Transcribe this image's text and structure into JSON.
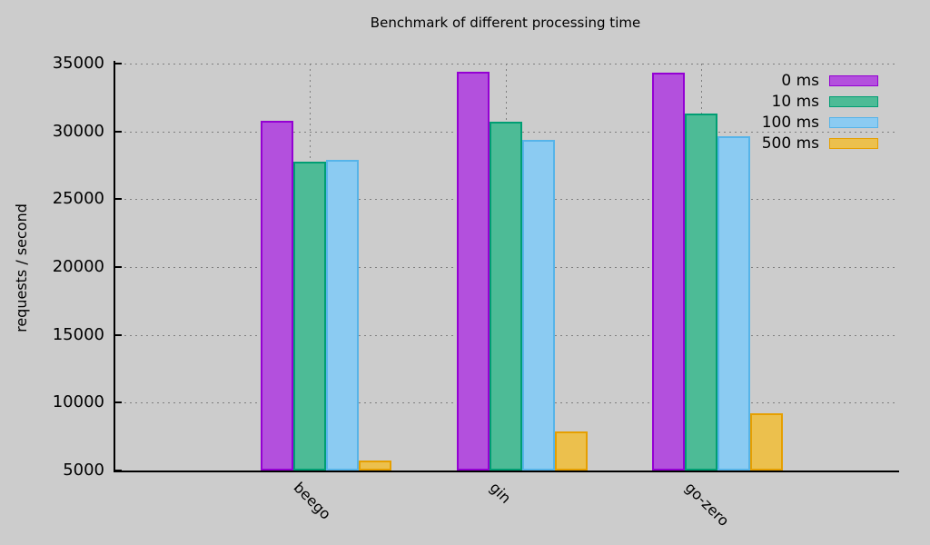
{
  "chart_data": {
    "type": "bar",
    "title": "Benchmark of different processing time",
    "ylabel": "requests / second",
    "xlabel": "",
    "categories": [
      "beego",
      "gin",
      "go-zero"
    ],
    "series": [
      {
        "name": "0 ms",
        "fill": "#b350dd",
        "border": "#9400d3",
        "values": [
          30750,
          34400,
          34350
        ]
      },
      {
        "name": "10 ms",
        "fill": "#4dbb96",
        "border": "#009e73",
        "values": [
          27800,
          30700,
          31300
        ]
      },
      {
        "name": "100 ms",
        "fill": "#8bcbf2",
        "border": "#56b4e9",
        "values": [
          27900,
          29400,
          29650
        ]
      },
      {
        "name": "500 ms",
        "fill": "#ecc04d",
        "border": "#e69f00",
        "values": [
          5750,
          7900,
          9200
        ]
      }
    ],
    "ylim": [
      5000,
      35000
    ],
    "ytick_step": 5000,
    "ytick_labels": [
      "5000",
      "10000",
      "15000",
      "20000",
      "25000",
      "30000",
      "35000"
    ],
    "grid": true,
    "legend_position": "top-right",
    "background": "#cccccc",
    "text_color": "#000000",
    "grid_color": "#7f7f7f"
  }
}
